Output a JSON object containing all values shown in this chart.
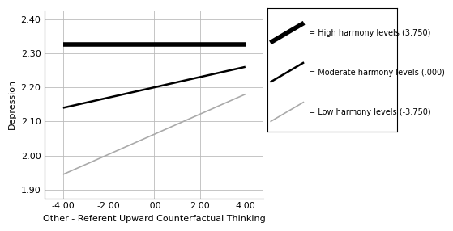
{
  "x_values": [
    -4.0,
    4.0
  ],
  "high_harmony": [
    2.325,
    2.325
  ],
  "moderate_harmony": [
    2.14,
    2.26
  ],
  "low_harmony": [
    1.945,
    2.18
  ],
  "xlim": [
    -4.8,
    4.8
  ],
  "ylim": [
    1.875,
    2.425
  ],
  "xticks": [
    -4.0,
    -2.0,
    0.0,
    2.0,
    4.0
  ],
  "xtick_labels": [
    "-4.00",
    "-2.00",
    ".00",
    "2.00",
    "4.00"
  ],
  "yticks": [
    1.9,
    2.0,
    2.1,
    2.2,
    2.3,
    2.4
  ],
  "ytick_labels": [
    "1.90",
    "2.00",
    "2.10",
    "2.20",
    "2.30",
    "2.40"
  ],
  "xlabel": "Other - Referent Upward Counterfactual Thinking",
  "ylabel": "Depression",
  "legend_labels": [
    "= High harmony levels (3.750)",
    "= Moderate harmony levels (.000)",
    "= Low harmony levels (-3.750)"
  ],
  "high_color": "#000000",
  "moderate_color": "#000000",
  "low_color": "#aaaaaa",
  "high_linewidth": 4.0,
  "moderate_linewidth": 1.8,
  "low_linewidth": 1.2,
  "background_color": "#ffffff",
  "grid_color": "#bbbbbb"
}
